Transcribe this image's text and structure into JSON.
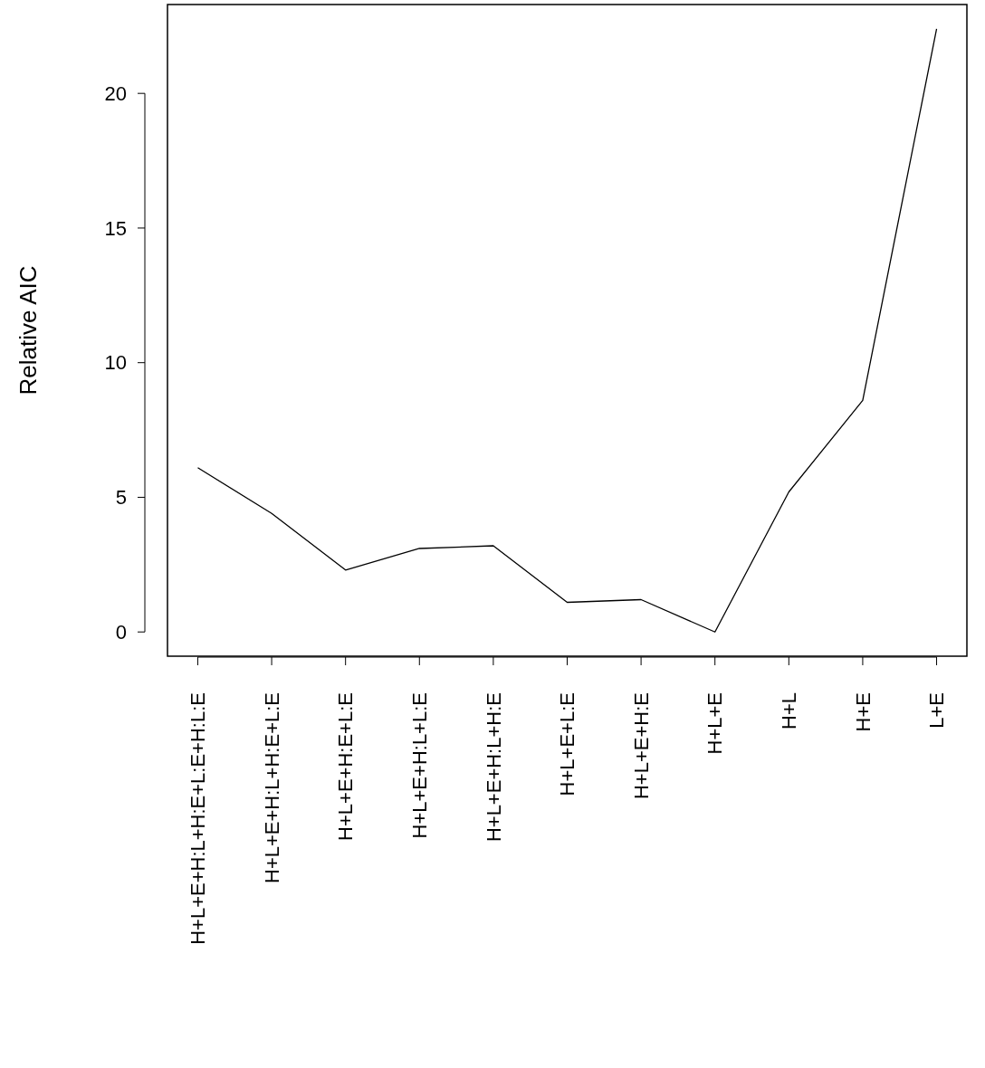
{
  "chart_data": {
    "type": "line",
    "ylabel": "Relative AIC",
    "categories": [
      "H+L+E+H:L+H:E+L:E+H:L:E",
      "H+L+E+H:L+H:E+L:E",
      "H+L+E+H:E+L:E",
      "H+L+E+H:L+L:E",
      "H+L+E+H:L+H:E",
      "H+L+E+L:E",
      "H+L+E+H:E",
      "H+L+E",
      "H+L",
      "H+E",
      "L+E"
    ],
    "series": [
      {
        "color": "#000000",
        "values": [
          6.1,
          4.4,
          2.3,
          3.1,
          3.2,
          1.1,
          1.2,
          0,
          5.2,
          8.6,
          22.4
        ]
      }
    ],
    "ylim": [
      -0.9,
      23.3
    ],
    "yticks": [
      0,
      5,
      10,
      15,
      20
    ],
    "grid": false,
    "marker": "none",
    "line_style": "solid"
  }
}
